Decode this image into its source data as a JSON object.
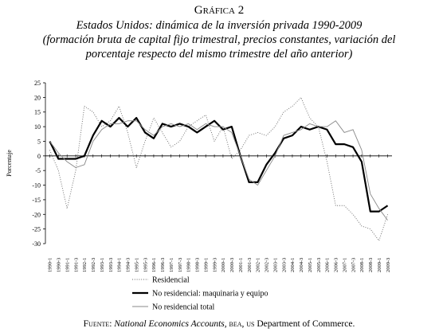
{
  "chart_data": {
    "type": "line",
    "title": "Gráfica 2",
    "subtitle": [
      "Estados Unidos: dinámica de la inversión privada 1990-2009",
      "(formación bruta de capital fijo trimestral, precios constantes, variación del",
      "porcentaje respecto del mismo trimestre del año anterior)"
    ],
    "y_label": "Porcentaje",
    "categories": [
      "1990-1",
      "1990-3",
      "1991-1",
      "1991-3",
      "1992-1",
      "1992-3",
      "1993-1",
      "1993-3",
      "1994-1",
      "1994-3",
      "1995-1",
      "1995-3",
      "1996-1",
      "1996-3",
      "1997-1",
      "1997-3",
      "1998-1",
      "1998-3",
      "1999-1",
      "1999-3",
      "2000-1",
      "2000-3",
      "2001-1",
      "2001-3",
      "2002-1",
      "2002-3",
      "2003-1",
      "2003-3",
      "2004-1",
      "2004-3",
      "2005-1",
      "2005-3",
      "2006-1",
      "2006-3",
      "2007-1",
      "2007-3",
      "2008-1",
      "2008-3",
      "2009-1",
      "2009-3"
    ],
    "series": [
      {
        "name": "Residencial",
        "color": "#666666",
        "style": "dotted",
        "values": [
          2,
          -5,
          -18,
          -5,
          17,
          15,
          10,
          12,
          17,
          8,
          -4,
          5,
          13,
          8,
          3,
          5,
          10,
          12,
          14,
          5,
          10,
          -1,
          2,
          7,
          8,
          7,
          10,
          15,
          17,
          20,
          13,
          10,
          -2,
          -17,
          -17,
          -20,
          -24,
          -25,
          -29,
          -20
        ]
      },
      {
        "name": "No residencial: maquinaria y equipo",
        "color": "#000000",
        "style": "thick",
        "values": [
          5,
          -1,
          -1,
          -1,
          0,
          7,
          12,
          10,
          13,
          10,
          13,
          8,
          6,
          11,
          10,
          11,
          10,
          8,
          10,
          12,
          9,
          10,
          0,
          -9,
          -9,
          -3,
          1,
          6,
          7,
          10,
          9,
          10,
          9,
          4,
          4,
          3,
          -2,
          -19,
          -19,
          -17
        ]
      },
      {
        "name": "No residencial total",
        "color": "#888888",
        "style": "thin",
        "values": [
          5,
          1,
          -2,
          -4,
          -3,
          5,
          9,
          11,
          11,
          12,
          12,
          9,
          7,
          10,
          11,
          10,
          11,
          9,
          11,
          10,
          10,
          8,
          0,
          -8,
          -10,
          -5,
          0,
          7,
          8,
          9,
          11,
          10,
          10,
          12,
          8,
          9,
          2,
          -13,
          -18,
          -22
        ]
      }
    ],
    "ylim": [
      -30,
      25
    ],
    "yticks": [
      -30,
      -25,
      -20,
      -15,
      -10,
      -5,
      0,
      5,
      10,
      15,
      20,
      25
    ],
    "grid": false,
    "source": {
      "label": "Fuente:",
      "publication": "National Economics Accounts,",
      "agency": "bea,",
      "country": "us",
      "department": "Department of Commerce."
    }
  }
}
